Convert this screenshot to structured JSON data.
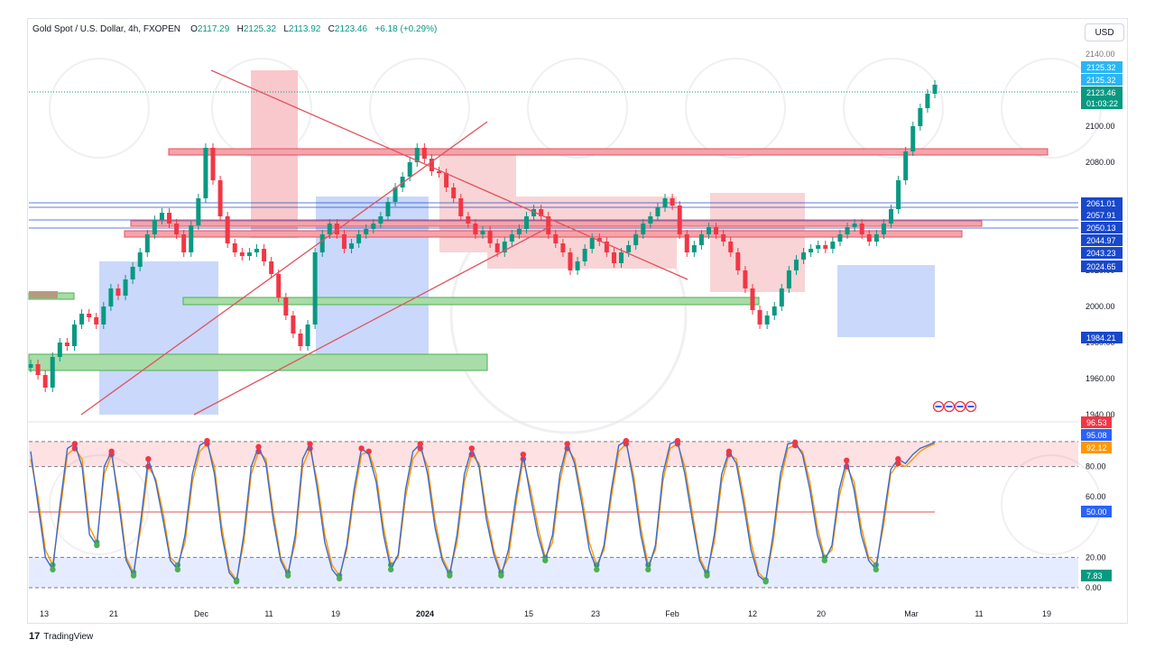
{
  "header": {
    "symbol": "Gold Spot / U.S. Dollar, 4h, FXOPEN",
    "o_label": "O",
    "o_value": "2117.29",
    "h_label": "H",
    "h_value": "2125.32",
    "l_label": "L",
    "l_value": "2113.92",
    "c_label": "C",
    "c_value": "2123.46",
    "change": "+6.18 (+0.29%)"
  },
  "currency_button": "USD",
  "footer": {
    "brand": "TradingView",
    "logo": "17"
  },
  "colors": {
    "up": "#089981",
    "down": "#f23645",
    "blue_line": "#2962ff",
    "orange_line": "#ff9800",
    "zone_red": "#f2364540",
    "zone_green": "#4caf5066",
    "zone_blue": "#2962ff33",
    "overbought_fill": "#f2364526",
    "oversold_fill": "#2962ff1f"
  },
  "chart_data": [
    {
      "type": "line",
      "title": "Gold Spot / U.S. Dollar, 4h, FXOPEN",
      "ylim": [
        1940,
        2140
      ],
      "y_ticks": [
        "2140.00",
        "2100.00",
        "2080.00",
        "2020.00",
        "2000.00",
        "1980.00",
        "1960.00",
        "1940.00"
      ],
      "x_ticks": [
        "13",
        "21",
        "Dec",
        "11",
        "19",
        "2024",
        "15",
        "23",
        "Feb",
        "12",
        "20",
        "Mar",
        "11",
        "19"
      ],
      "price_tags": [
        {
          "value": "2125.32",
          "color": "#29b6f6"
        },
        {
          "value": "2125.32",
          "color": "#29b6f6"
        },
        {
          "value": "2123.46",
          "color": "#089981"
        },
        {
          "value": "01:03:22",
          "color": "#089981"
        },
        {
          "value": "2061.01",
          "color": "#1848cc"
        },
        {
          "value": "2057.91",
          "color": "#1848cc"
        },
        {
          "value": "2050.13",
          "color": "#1848cc"
        },
        {
          "value": "2044.97",
          "color": "#1848cc"
        },
        {
          "value": "2043.23",
          "color": "#1848cc"
        },
        {
          "value": "2024.65",
          "color": "#1848cc"
        },
        {
          "value": "1984.21",
          "color": "#1848cc"
        }
      ],
      "series": [
        {
          "values": [
            1968,
            1962,
            1955,
            1972,
            1980,
            1978,
            1990,
            1996,
            1994,
            1990,
            2000,
            2010,
            2006,
            2015,
            2022,
            2030,
            2040,
            2048,
            2052,
            2046,
            2040,
            2030,
            2045,
            2060,
            2088,
            2070,
            2050,
            2035,
            2030,
            2028,
            2030,
            2032,
            2025,
            2018,
            2005,
            1995,
            1985,
            1978,
            1990,
            2030,
            2040,
            2046,
            2040,
            2032,
            2035,
            2040,
            2043,
            2046,
            2050,
            2058,
            2066,
            2072,
            2080,
            2088,
            2082,
            2075,
            2074,
            2066,
            2060,
            2050,
            2046,
            2040,
            2042,
            2035,
            2030,
            2036,
            2040,
            2043,
            2050,
            2054,
            2050,
            2040,
            2035,
            2030,
            2020,
            2025,
            2032,
            2038,
            2036,
            2030,
            2024,
            2030,
            2034,
            2040,
            2046,
            2050,
            2055,
            2060,
            2056,
            2040,
            2030,
            2034,
            2040,
            2044,
            2040,
            2036,
            2030,
            2020,
            2010,
            1998,
            1990,
            1995,
            2000,
            2010,
            2020,
            2026,
            2030,
            2032,
            2034,
            2032,
            2036,
            2040,
            2044,
            2046,
            2040,
            2036,
            2040,
            2046,
            2054,
            2070,
            2086,
            2100,
            2110,
            2118,
            2123
          ]
        }
      ]
    },
    {
      "type": "line",
      "title": "",
      "ylim": [
        0,
        100
      ],
      "y_ticks": [
        "80.00",
        "60.00",
        "20.00",
        "0.00"
      ],
      "levels": [
        80,
        50,
        20
      ],
      "value_tags": [
        {
          "value": "96.53",
          "color": "#f23645"
        },
        {
          "value": "95.08",
          "color": "#2962ff"
        },
        {
          "value": "92.12",
          "color": "#ff9800"
        },
        {
          "value": "50.00",
          "color": "#2962ff"
        },
        {
          "value": "7.83",
          "color": "#089981"
        }
      ],
      "series": [
        {
          "values": [
            85,
            60,
            25,
            15,
            50,
            88,
            92,
            85,
            40,
            30,
            75,
            88,
            60,
            20,
            10,
            40,
            80,
            72,
            50,
            20,
            15,
            30,
            70,
            90,
            95,
            80,
            40,
            12,
            5,
            30,
            75,
            90,
            85,
            50,
            20,
            10,
            30,
            80,
            92,
            70,
            35,
            15,
            8,
            25,
            60,
            88,
            90,
            75,
            40,
            15,
            20,
            60,
            85,
            92,
            80,
            45,
            20,
            10,
            30,
            70,
            88,
            82,
            50,
            25,
            10,
            20,
            55,
            85,
            65,
            40,
            20,
            30,
            70,
            92,
            85,
            60,
            30,
            15,
            25,
            60,
            90,
            95,
            75,
            40,
            15,
            25,
            70,
            92,
            95,
            80,
            50,
            20,
            10,
            30,
            70,
            88,
            85,
            60,
            30,
            10,
            5,
            30,
            70,
            92,
            94,
            90,
            70,
            40,
            20,
            25,
            60,
            80,
            70,
            40,
            20,
            15,
            40,
            75,
            82,
            80,
            85,
            90,
            93,
            95
          ]
        },
        {
          "values": [
            90,
            55,
            20,
            12,
            55,
            92,
            95,
            80,
            35,
            28,
            80,
            90,
            55,
            18,
            8,
            45,
            85,
            70,
            45,
            18,
            12,
            35,
            75,
            94,
            97,
            75,
            35,
            10,
            4,
            35,
            80,
            93,
            82,
            45,
            18,
            8,
            35,
            85,
            95,
            65,
            30,
            12,
            6,
            28,
            65,
            92,
            88,
            70,
            35,
            12,
            22,
            65,
            90,
            95,
            75,
            40,
            18,
            8,
            35,
            75,
            92,
            80,
            45,
            22,
            8,
            25,
            60,
            88,
            60,
            35,
            18,
            35,
            75,
            95,
            82,
            55,
            25,
            12,
            28,
            65,
            94,
            97,
            70,
            35,
            12,
            28,
            75,
            95,
            97,
            75,
            45,
            18,
            8,
            35,
            75,
            90,
            82,
            55,
            25,
            8,
            4,
            35,
            75,
            95,
            96,
            88,
            65,
            35,
            18,
            28,
            65,
            84,
            65,
            35,
            18,
            12,
            45,
            78,
            85,
            82,
            88,
            92,
            94,
            96
          ]
        }
      ]
    }
  ]
}
